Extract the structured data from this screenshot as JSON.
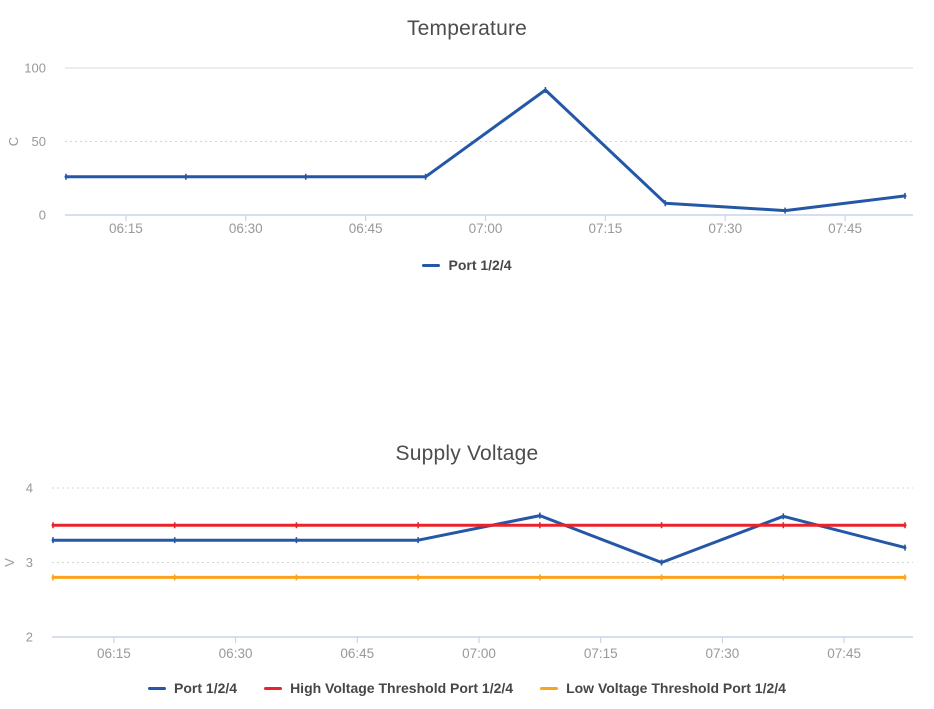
{
  "chart_data": [
    {
      "type": "line",
      "title": "Temperature",
      "ylabel": "C",
      "xlabel": "",
      "ylim": [
        0,
        100
      ],
      "y_ticks": [
        0,
        50,
        100
      ],
      "xlim_hours": [
        6.125,
        7.875
      ],
      "x_tick_labels": [
        "06:15",
        "06:30",
        "06:45",
        "07:00",
        "07:15",
        "07:30",
        "07:45"
      ],
      "x_tick_hours": [
        6.25,
        6.5,
        6.75,
        7.0,
        7.25,
        7.5,
        7.75
      ],
      "x_labels": [
        "06:07:30",
        "06:22:30",
        "06:37:30",
        "06:52:30",
        "07:07:30",
        "07:22:30",
        "07:37:30",
        "07:52:30"
      ],
      "x_hours": [
        6.125,
        6.375,
        6.625,
        6.875,
        7.125,
        7.375,
        7.625,
        7.875
      ],
      "grid": true,
      "legend_position": "bottom",
      "series": [
        {
          "name": "Port 1/2/4",
          "color": "#2557a7",
          "values": [
            26,
            26,
            26,
            26,
            85,
            8,
            3,
            13
          ]
        }
      ]
    },
    {
      "type": "line",
      "title": "Supply Voltage",
      "ylabel": "V",
      "xlabel": "",
      "ylim": [
        2,
        4
      ],
      "y_ticks": [
        2,
        3,
        4
      ],
      "xlim_hours": [
        6.125,
        7.875
      ],
      "x_tick_labels": [
        "06:15",
        "06:30",
        "06:45",
        "07:00",
        "07:15",
        "07:30",
        "07:45"
      ],
      "x_tick_hours": [
        6.25,
        6.5,
        6.75,
        7.0,
        7.25,
        7.5,
        7.75
      ],
      "x_labels": [
        "06:07:30",
        "06:22:30",
        "06:37:30",
        "06:52:30",
        "07:07:30",
        "07:22:30",
        "07:37:30",
        "07:52:30"
      ],
      "x_hours": [
        6.125,
        6.375,
        6.625,
        6.875,
        7.125,
        7.375,
        7.625,
        7.875
      ],
      "grid": true,
      "legend_position": "bottom",
      "series": [
        {
          "name": "Port 1/2/4",
          "color": "#2557a7",
          "values": [
            3.3,
            3.3,
            3.3,
            3.3,
            3.63,
            3.0,
            3.62,
            3.2
          ]
        },
        {
          "name": "High Voltage Threshold Port 1/2/4",
          "color": "#e9232b",
          "values": [
            3.5,
            3.5,
            3.5,
            3.5,
            3.5,
            3.5,
            3.5,
            3.5
          ]
        },
        {
          "name": "Low Voltage Threshold Port 1/2/4",
          "color": "#fca31e",
          "values": [
            2.8,
            2.8,
            2.8,
            2.8,
            2.8,
            2.8,
            2.8,
            2.8
          ]
        }
      ]
    }
  ]
}
